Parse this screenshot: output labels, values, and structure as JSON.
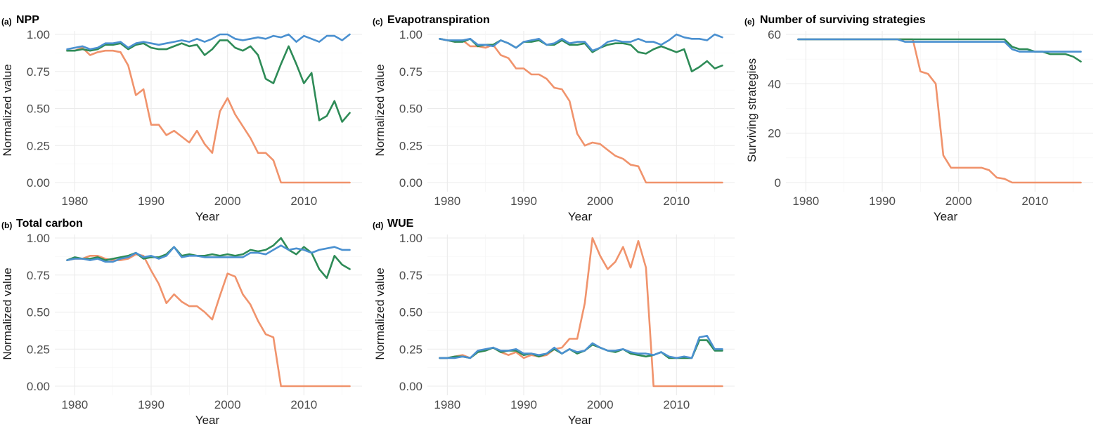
{
  "colors": {
    "orange": "#F0936C",
    "green": "#2E8B57",
    "blue": "#4A90D0"
  },
  "chart_data": [
    {
      "type": "line",
      "tag": "(a)",
      "title": "NPP",
      "xlabel": "Year",
      "ylabel": "Normalized value",
      "xlim": [
        1979,
        2016
      ],
      "ylim": [
        0,
        1
      ],
      "xticks": [
        "1980",
        "1990",
        "2000",
        "2010"
      ],
      "yticks": [
        "0.00",
        "0.25",
        "0.50",
        "0.75",
        "1.00"
      ],
      "grid": true,
      "x": [
        1979,
        1980,
        1981,
        1982,
        1983,
        1984,
        1985,
        1986,
        1987,
        1988,
        1989,
        1990,
        1991,
        1992,
        1993,
        1994,
        1995,
        1996,
        1997,
        1998,
        1999,
        2000,
        2001,
        2002,
        2003,
        2004,
        2005,
        2006,
        2007,
        2008,
        2009,
        2010,
        2011,
        2012,
        2013,
        2014,
        2015,
        2016
      ],
      "series": [
        {
          "color": "orange",
          "values": [
            0.89,
            0.89,
            0.91,
            0.86,
            0.88,
            0.89,
            0.89,
            0.88,
            0.79,
            0.59,
            0.63,
            0.39,
            0.39,
            0.32,
            0.35,
            0.31,
            0.27,
            0.35,
            0.26,
            0.2,
            0.48,
            0.57,
            0.46,
            0.38,
            0.3,
            0.2,
            0.2,
            0.15,
            0.0,
            0.0,
            0.0,
            0.0,
            0.0,
            0.0,
            0.0,
            0.0,
            0.0,
            0.0
          ]
        },
        {
          "color": "green",
          "values": [
            0.89,
            0.89,
            0.9,
            0.89,
            0.9,
            0.93,
            0.93,
            0.94,
            0.9,
            0.93,
            0.94,
            0.91,
            0.9,
            0.9,
            0.92,
            0.94,
            0.92,
            0.93,
            0.86,
            0.9,
            0.96,
            0.96,
            0.91,
            0.89,
            0.92,
            0.86,
            0.7,
            0.67,
            0.8,
            0.92,
            0.8,
            0.67,
            0.74,
            0.42,
            0.45,
            0.55,
            0.41,
            0.47
          ]
        },
        {
          "color": "blue",
          "values": [
            0.9,
            0.91,
            0.92,
            0.9,
            0.91,
            0.94,
            0.94,
            0.95,
            0.91,
            0.94,
            0.95,
            0.94,
            0.93,
            0.94,
            0.95,
            0.96,
            0.95,
            0.97,
            0.95,
            0.97,
            1.0,
            1.0,
            0.97,
            0.96,
            0.97,
            0.98,
            0.97,
            0.99,
            0.98,
            1.0,
            0.95,
            0.99,
            0.97,
            0.95,
            0.99,
            0.99,
            0.96,
            1.0
          ]
        }
      ]
    },
    {
      "type": "line",
      "tag": "(b)",
      "title": "Total carbon",
      "xlabel": "Year",
      "ylabel": "Normalized value",
      "xlim": [
        1979,
        2016
      ],
      "ylim": [
        0,
        1
      ],
      "xticks": [
        "1980",
        "1990",
        "2000",
        "2010"
      ],
      "yticks": [
        "0.00",
        "0.25",
        "0.50",
        "0.75",
        "1.00"
      ],
      "grid": true,
      "x": [
        1979,
        1980,
        1981,
        1982,
        1983,
        1984,
        1985,
        1986,
        1987,
        1988,
        1989,
        1990,
        1991,
        1992,
        1993,
        1994,
        1995,
        1996,
        1997,
        1998,
        1999,
        2000,
        2001,
        2002,
        2003,
        2004,
        2005,
        2006,
        2007,
        2008,
        2009,
        2010,
        2011,
        2012,
        2013,
        2014,
        2015,
        2016
      ],
      "series": [
        {
          "color": "orange",
          "values": [
            0.85,
            0.86,
            0.86,
            0.88,
            0.88,
            0.86,
            0.85,
            0.85,
            0.86,
            0.89,
            0.88,
            0.78,
            0.69,
            0.56,
            0.62,
            0.57,
            0.54,
            0.54,
            0.5,
            0.45,
            0.61,
            0.76,
            0.74,
            0.62,
            0.55,
            0.44,
            0.35,
            0.33,
            0.0,
            0.0,
            0.0,
            0.0,
            0.0,
            0.0,
            0.0,
            0.0,
            0.0,
            0.0
          ]
        },
        {
          "color": "green",
          "values": [
            0.85,
            0.87,
            0.86,
            0.86,
            0.87,
            0.85,
            0.86,
            0.87,
            0.88,
            0.9,
            0.86,
            0.87,
            0.87,
            0.89,
            0.94,
            0.88,
            0.89,
            0.88,
            0.88,
            0.89,
            0.88,
            0.89,
            0.88,
            0.89,
            0.92,
            0.91,
            0.92,
            0.95,
            1.0,
            0.92,
            0.89,
            0.94,
            0.9,
            0.79,
            0.73,
            0.88,
            0.82,
            0.79
          ]
        },
        {
          "color": "blue",
          "values": [
            0.85,
            0.86,
            0.86,
            0.85,
            0.86,
            0.84,
            0.84,
            0.86,
            0.87,
            0.9,
            0.87,
            0.88,
            0.86,
            0.88,
            0.94,
            0.87,
            0.88,
            0.88,
            0.87,
            0.87,
            0.87,
            0.87,
            0.87,
            0.87,
            0.9,
            0.9,
            0.89,
            0.92,
            0.95,
            0.92,
            0.93,
            0.92,
            0.9,
            0.92,
            0.93,
            0.94,
            0.92,
            0.92
          ]
        }
      ]
    },
    {
      "type": "line",
      "tag": "(c)",
      "title": "Evapotranspiration",
      "xlabel": "Year",
      "ylabel": "Normalized value",
      "xlim": [
        1979,
        2016
      ],
      "ylim": [
        0,
        1
      ],
      "xticks": [
        "1980",
        "1990",
        "2000",
        "2010"
      ],
      "yticks": [
        "0.00",
        "0.25",
        "0.50",
        "0.75",
        "1.00"
      ],
      "grid": true,
      "x": [
        1979,
        1980,
        1981,
        1982,
        1983,
        1984,
        1985,
        1986,
        1987,
        1988,
        1989,
        1990,
        1991,
        1992,
        1993,
        1994,
        1995,
        1996,
        1997,
        1998,
        1999,
        2000,
        2001,
        2002,
        2003,
        2004,
        2005,
        2006,
        2007,
        2008,
        2009,
        2010,
        2011,
        2012,
        2013,
        2014,
        2015,
        2016
      ],
      "series": [
        {
          "color": "orange",
          "values": [
            0.97,
            0.96,
            0.95,
            0.96,
            0.92,
            0.92,
            0.91,
            0.93,
            0.86,
            0.84,
            0.77,
            0.77,
            0.73,
            0.73,
            0.7,
            0.64,
            0.63,
            0.55,
            0.33,
            0.25,
            0.27,
            0.26,
            0.22,
            0.18,
            0.16,
            0.12,
            0.11,
            0.0,
            0.0,
            0.0,
            0.0,
            0.0,
            0.0,
            0.0,
            0.0,
            0.0,
            0.0,
            0.0
          ]
        },
        {
          "color": "green",
          "values": [
            0.97,
            0.96,
            0.95,
            0.95,
            0.97,
            0.92,
            0.93,
            0.93,
            0.96,
            0.94,
            0.91,
            0.95,
            0.95,
            0.96,
            0.93,
            0.93,
            0.96,
            0.93,
            0.93,
            0.94,
            0.88,
            0.91,
            0.93,
            0.94,
            0.94,
            0.93,
            0.88,
            0.87,
            0.9,
            0.92,
            0.9,
            0.88,
            0.9,
            0.75,
            0.78,
            0.82,
            0.77,
            0.79
          ]
        },
        {
          "color": "blue",
          "values": [
            0.97,
            0.96,
            0.96,
            0.96,
            0.97,
            0.93,
            0.93,
            0.92,
            0.96,
            0.94,
            0.91,
            0.95,
            0.96,
            0.97,
            0.93,
            0.94,
            0.97,
            0.94,
            0.95,
            0.95,
            0.89,
            0.91,
            0.95,
            0.96,
            0.95,
            0.95,
            0.97,
            0.95,
            0.95,
            0.93,
            0.96,
            1.0,
            0.98,
            0.97,
            0.97,
            0.96,
            1.0,
            0.98
          ]
        }
      ]
    },
    {
      "type": "line",
      "tag": "(d)",
      "title": "WUE",
      "xlabel": "Year",
      "ylabel": "Normalized value",
      "xlim": [
        1979,
        2016
      ],
      "ylim": [
        0,
        1
      ],
      "xticks": [
        "1980",
        "1990",
        "2000",
        "2010"
      ],
      "yticks": [
        "0.00",
        "0.25",
        "0.50",
        "0.75",
        "1.00"
      ],
      "grid": true,
      "x": [
        1979,
        1980,
        1981,
        1982,
        1983,
        1984,
        1985,
        1986,
        1987,
        1988,
        1989,
        1990,
        1991,
        1992,
        1993,
        1994,
        1995,
        1996,
        1997,
        1998,
        1999,
        2000,
        2001,
        2002,
        2003,
        2004,
        2005,
        2006,
        2007,
        2008,
        2009,
        2010,
        2011,
        2012,
        2013,
        2014,
        2015,
        2016
      ],
      "series": [
        {
          "color": "orange",
          "values": [
            0.19,
            0.19,
            0.2,
            0.21,
            0.19,
            0.23,
            0.24,
            0.26,
            0.23,
            0.21,
            0.23,
            0.19,
            0.21,
            0.2,
            0.21,
            0.25,
            0.26,
            0.32,
            0.32,
            0.56,
            1.0,
            0.88,
            0.79,
            0.84,
            0.94,
            0.8,
            0.98,
            0.8,
            0.0,
            0.0,
            0.0,
            0.0,
            0.0,
            0.0,
            0.0,
            0.0,
            0.0,
            0.0
          ]
        },
        {
          "color": "green",
          "values": [
            0.19,
            0.19,
            0.2,
            0.2,
            0.19,
            0.23,
            0.24,
            0.26,
            0.23,
            0.24,
            0.24,
            0.21,
            0.22,
            0.2,
            0.22,
            0.25,
            0.22,
            0.25,
            0.22,
            0.24,
            0.28,
            0.26,
            0.24,
            0.23,
            0.25,
            0.22,
            0.21,
            0.2,
            0.21,
            0.23,
            0.19,
            0.19,
            0.19,
            0.19,
            0.31,
            0.31,
            0.24,
            0.24
          ]
        },
        {
          "color": "blue",
          "values": [
            0.19,
            0.19,
            0.19,
            0.2,
            0.19,
            0.24,
            0.25,
            0.26,
            0.24,
            0.24,
            0.25,
            0.22,
            0.22,
            0.21,
            0.22,
            0.26,
            0.22,
            0.25,
            0.23,
            0.24,
            0.29,
            0.26,
            0.24,
            0.24,
            0.25,
            0.23,
            0.22,
            0.22,
            0.21,
            0.23,
            0.2,
            0.19,
            0.2,
            0.19,
            0.33,
            0.34,
            0.25,
            0.25
          ]
        }
      ]
    },
    {
      "type": "line",
      "tag": "(e)",
      "title": "Number of surviving strategies",
      "xlabel": "Year",
      "ylabel": "Surviving strategies",
      "xlim": [
        1979,
        2016
      ],
      "ylim": [
        0,
        60
      ],
      "xticks": [
        "1980",
        "1990",
        "2000",
        "2010"
      ],
      "yticks": [
        "0",
        "20",
        "40",
        "60"
      ],
      "grid": true,
      "x": [
        1979,
        1980,
        1981,
        1982,
        1983,
        1984,
        1985,
        1986,
        1987,
        1988,
        1989,
        1990,
        1991,
        1992,
        1993,
        1994,
        1995,
        1996,
        1997,
        1998,
        1999,
        2000,
        2001,
        2002,
        2003,
        2004,
        2005,
        2006,
        2007,
        2008,
        2009,
        2010,
        2011,
        2012,
        2013,
        2014,
        2015,
        2016
      ],
      "series": [
        {
          "color": "orange",
          "values": [
            58,
            58,
            58,
            58,
            58,
            58,
            58,
            58,
            58,
            58,
            58,
            58,
            58,
            58,
            58,
            58,
            45,
            44,
            40,
            11,
            6,
            6,
            6,
            6,
            6,
            5,
            2,
            1.5,
            0,
            0,
            0,
            0,
            0,
            0,
            0,
            0,
            0,
            0
          ]
        },
        {
          "color": "green",
          "values": [
            58,
            58,
            58,
            58,
            58,
            58,
            58,
            58,
            58,
            58,
            58,
            58,
            58,
            58,
            58,
            58,
            58,
            58,
            58,
            58,
            58,
            58,
            58,
            58,
            58,
            58,
            58,
            58,
            55,
            54,
            54,
            53,
            53,
            52,
            52,
            52,
            51,
            49
          ]
        },
        {
          "color": "blue",
          "values": [
            58,
            58,
            58,
            58,
            58,
            58,
            58,
            58,
            58,
            58,
            58,
            58,
            58,
            58,
            57,
            57,
            57,
            57,
            57,
            57,
            57,
            57,
            57,
            57,
            57,
            57,
            57,
            57,
            54,
            53,
            53,
            53,
            53,
            53,
            53,
            53,
            53,
            53
          ]
        }
      ]
    }
  ]
}
